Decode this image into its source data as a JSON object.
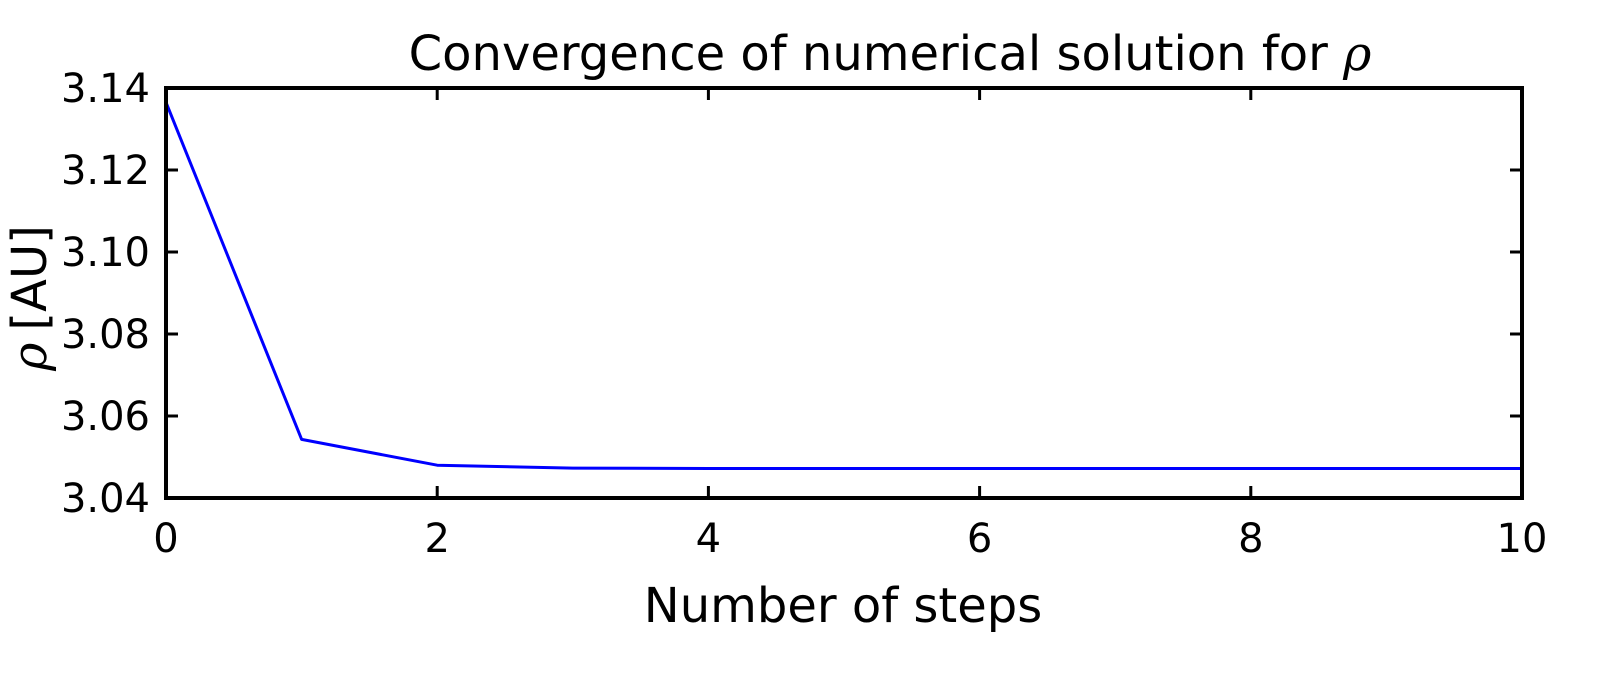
{
  "chart_data": {
    "type": "line",
    "title": "Convergence of numerical solution for ",
    "title_symbol": "ρ",
    "xlabel": "Number of steps",
    "ylabel_symbol": "ρ",
    "ylabel": "[AU]",
    "xlim": [
      0,
      10
    ],
    "ylim": [
      3.04,
      3.14
    ],
    "xticks": [
      "0",
      "2",
      "4",
      "6",
      "8",
      "10"
    ],
    "yticks": [
      "3.04",
      "3.06",
      "3.08",
      "3.10",
      "3.12",
      "3.14"
    ],
    "grid": false,
    "x": [
      0,
      1,
      2,
      3,
      4,
      5,
      6,
      7,
      8,
      9,
      10
    ],
    "series": [
      {
        "color": "#0000ff",
        "values": [
          3.1365,
          3.0543,
          3.048,
          3.0473,
          3.0472,
          3.0472,
          3.0472,
          3.0472,
          3.0472,
          3.0472,
          3.0472
        ]
      }
    ]
  }
}
